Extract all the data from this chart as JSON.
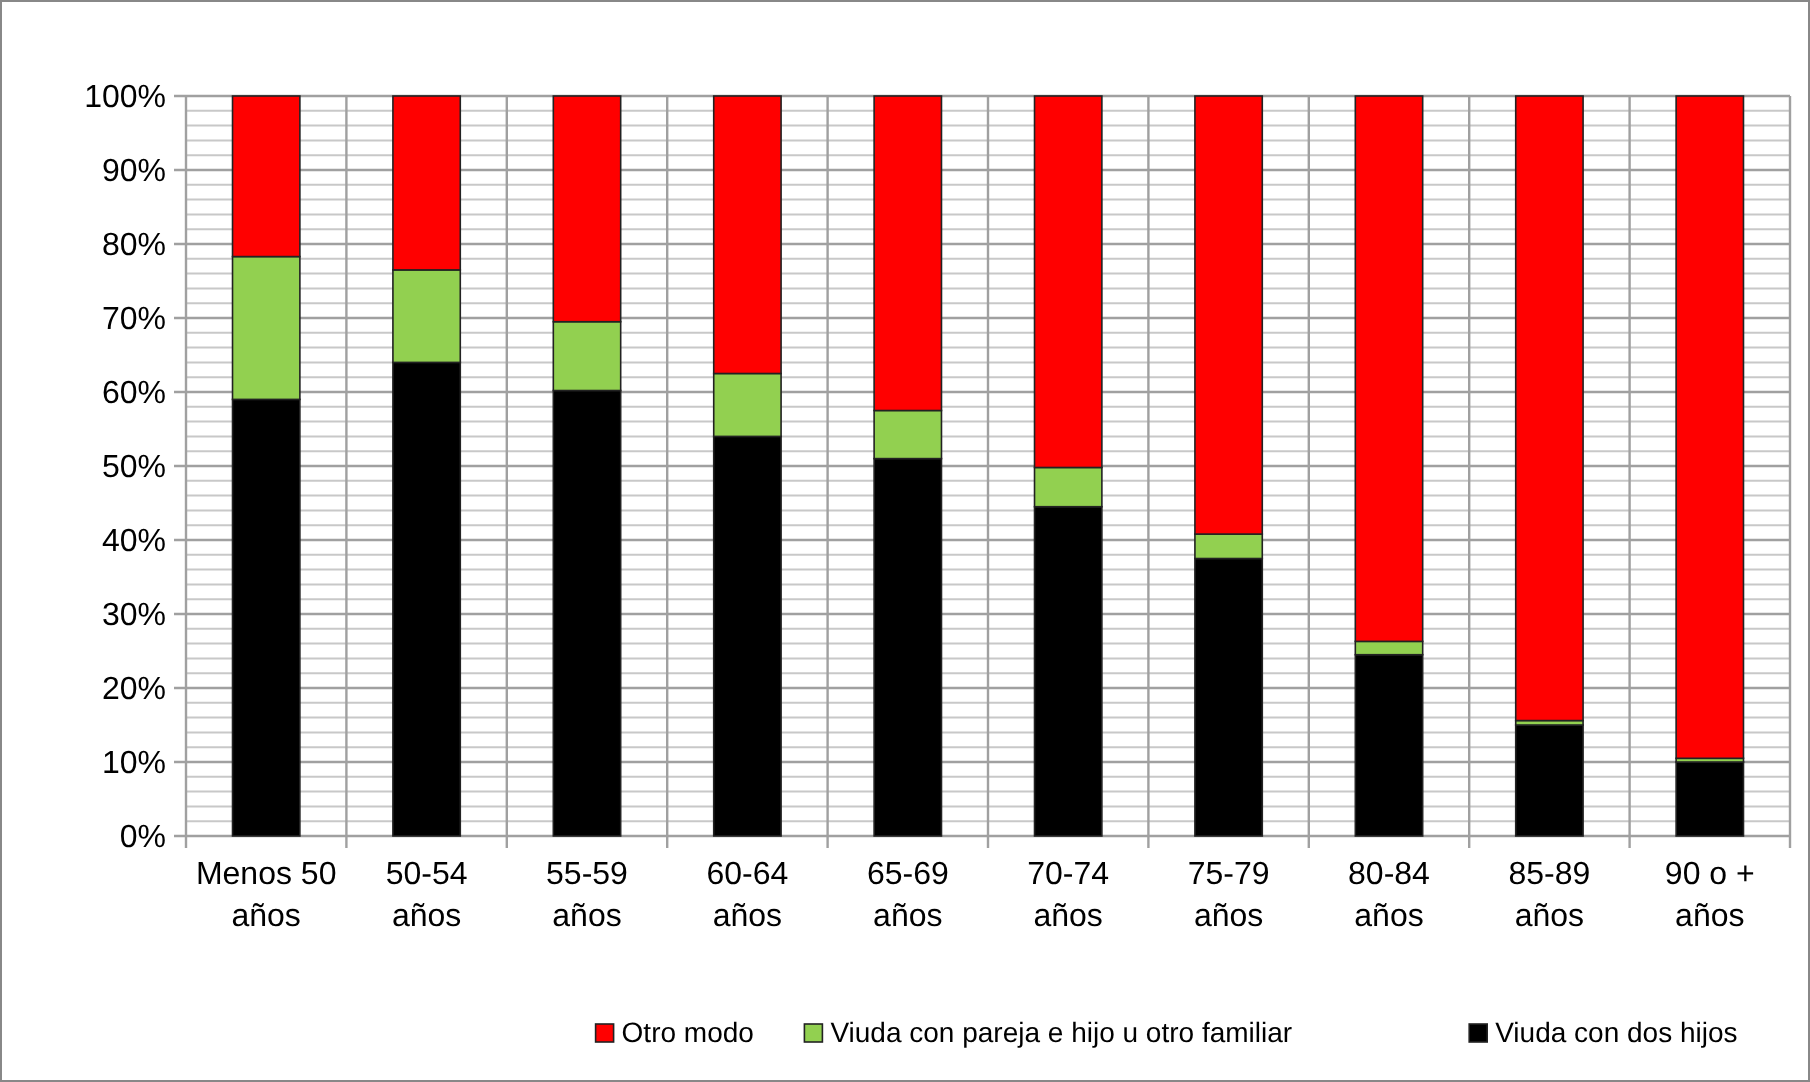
{
  "chart_data": {
    "type": "bar",
    "stacked": true,
    "categories": [
      "Menos 50 años",
      "50-54 años",
      "55-59 años",
      "60-64 años",
      "65-69 años",
      "70-74 años",
      "75-79 años",
      "80-84 años",
      "85-89 años",
      "90 o + años"
    ],
    "series": [
      {
        "name": "Viuda con dos hijos",
        "color": "#000000",
        "values": [
          59,
          64,
          60.2,
          54,
          51,
          44.5,
          37.5,
          24.5,
          15,
          10
        ]
      },
      {
        "name": "Viuda con pareja e hijo u otro familiar",
        "color": "#92d050",
        "values": [
          19.3,
          12.5,
          9.3,
          8.5,
          6.5,
          5.3,
          3.3,
          1.8,
          0.6,
          0.5
        ]
      },
      {
        "name": "Otro modo",
        "color": "#ff0000",
        "values": [
          21.7,
          23.5,
          30.5,
          37.5,
          42.5,
          50.2,
          59.2,
          73.7,
          84.4,
          89.5
        ]
      }
    ],
    "ylim": [
      0,
      100
    ],
    "yticks": [
      {
        "value": 0,
        "label": "0%"
      },
      {
        "value": 10,
        "label": "10%"
      },
      {
        "value": 20,
        "label": "20%"
      },
      {
        "value": 30,
        "label": "30%"
      },
      {
        "value": 40,
        "label": "40%"
      },
      {
        "value": 50,
        "label": "50%"
      },
      {
        "value": 60,
        "label": "60%"
      },
      {
        "value": 70,
        "label": "70%"
      },
      {
        "value": 80,
        "label": "80%"
      },
      {
        "value": 90,
        "label": "90%"
      },
      {
        "value": 100,
        "label": "100%"
      }
    ],
    "grid": true,
    "legend": "bottom"
  }
}
